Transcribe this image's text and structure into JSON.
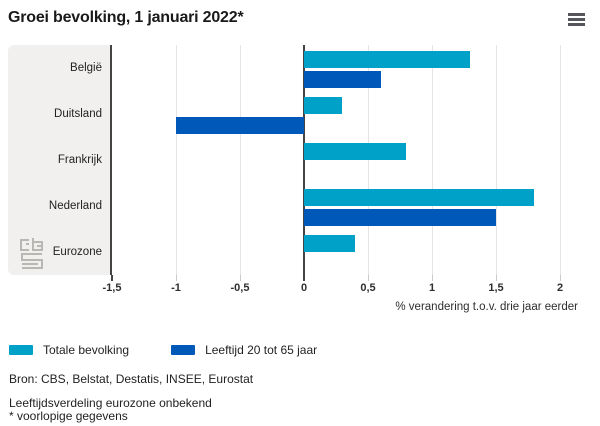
{
  "header": {
    "title": "Groei bevolking, 1 januari 2022*"
  },
  "chart_data": {
    "type": "bar",
    "orientation": "horizontal",
    "title": "Groei bevolking, 1 januari 2022*",
    "categories": [
      "België",
      "Duitsland",
      "Frankrijk",
      "Nederland",
      "Eurozone"
    ],
    "series": [
      {
        "name": "Totale bevolking",
        "color": "#00a1c9",
        "values": [
          1.3,
          0.3,
          0.8,
          1.8,
          0.4
        ]
      },
      {
        "name": "Leeftijd 20 tot 65 jaar",
        "color": "#0058b8",
        "values": [
          0.6,
          -1.0,
          0.0,
          1.5,
          null
        ]
      }
    ],
    "xlabel": "% verandering t.o.v. drie jaar eerder",
    "xlim": [
      -1.5,
      2.25
    ],
    "xticks": [
      {
        "value": -1.5,
        "label": "-1,5",
        "emph": true
      },
      {
        "value": -1.0,
        "label": "-1",
        "emph": false
      },
      {
        "value": -0.5,
        "label": "-0,5",
        "emph": false
      },
      {
        "value": 0,
        "label": "0",
        "emph": true
      },
      {
        "value": 0.5,
        "label": "0,5",
        "emph": false
      },
      {
        "value": 1.0,
        "label": "1",
        "emph": false
      },
      {
        "value": 1.5,
        "label": "1,5",
        "emph": false
      },
      {
        "value": 2.0,
        "label": "2",
        "emph": false
      }
    ],
    "grid": true,
    "legend_position": "bottom"
  },
  "footer": {
    "source": "Bron: CBS, Belstat, Destatis, INSEE, Eurostat",
    "note1": "Leeftijdsverdeling eurozone onbekend",
    "note2": "* voorlopige gegevens"
  },
  "colors": {
    "series_total": "#00a1c9",
    "series_age": "#0058b8",
    "panel_bg": "#f1f0ee",
    "axis_dark": "#454545",
    "gridline": "#e4e4e2"
  }
}
